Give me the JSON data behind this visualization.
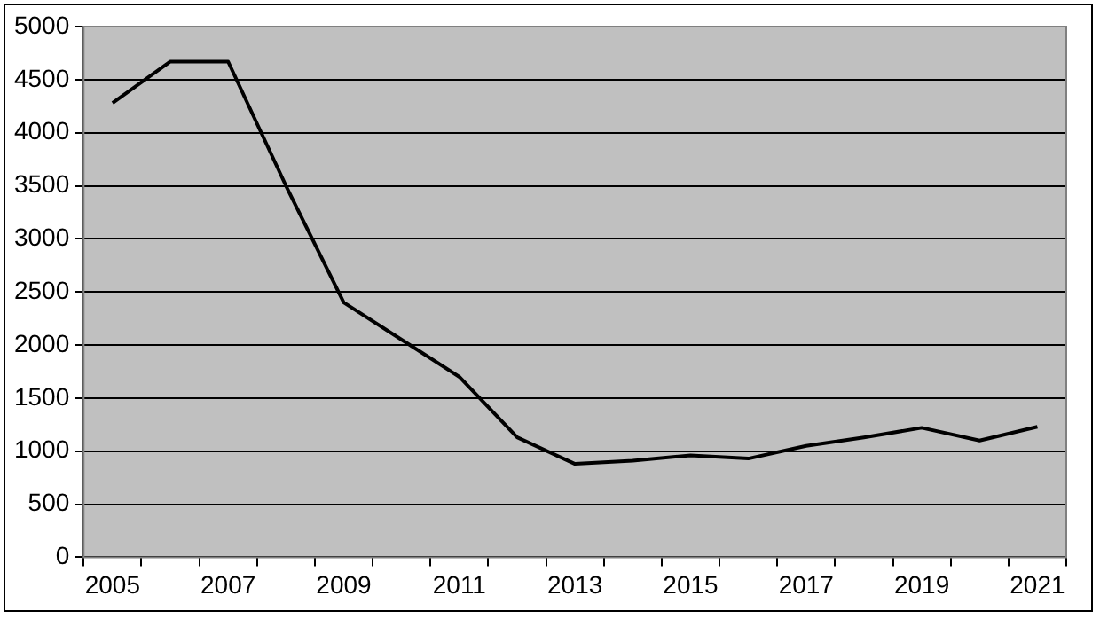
{
  "chart_data": {
    "type": "line",
    "categories": [
      "2005",
      null,
      "2007",
      null,
      "2009",
      null,
      "2011",
      null,
      "2013",
      null,
      "2015",
      null,
      "2017",
      null,
      "2019",
      null,
      "2021"
    ],
    "series": [
      {
        "color": "#000000",
        "values": [
          4280,
          4670,
          4670,
          3500,
          2400,
          2050,
          1700,
          1130,
          880,
          910,
          960,
          930,
          1050,
          1130,
          1220,
          1100,
          1230
        ]
      }
    ],
    "ylim": [
      0,
      5000
    ],
    "yticks": [
      0,
      500,
      1000,
      1500,
      2000,
      2500,
      3000,
      3500,
      4000,
      4500,
      5000
    ],
    "grid": "y",
    "legend": false,
    "marker": "none",
    "line_style": "solid"
  }
}
